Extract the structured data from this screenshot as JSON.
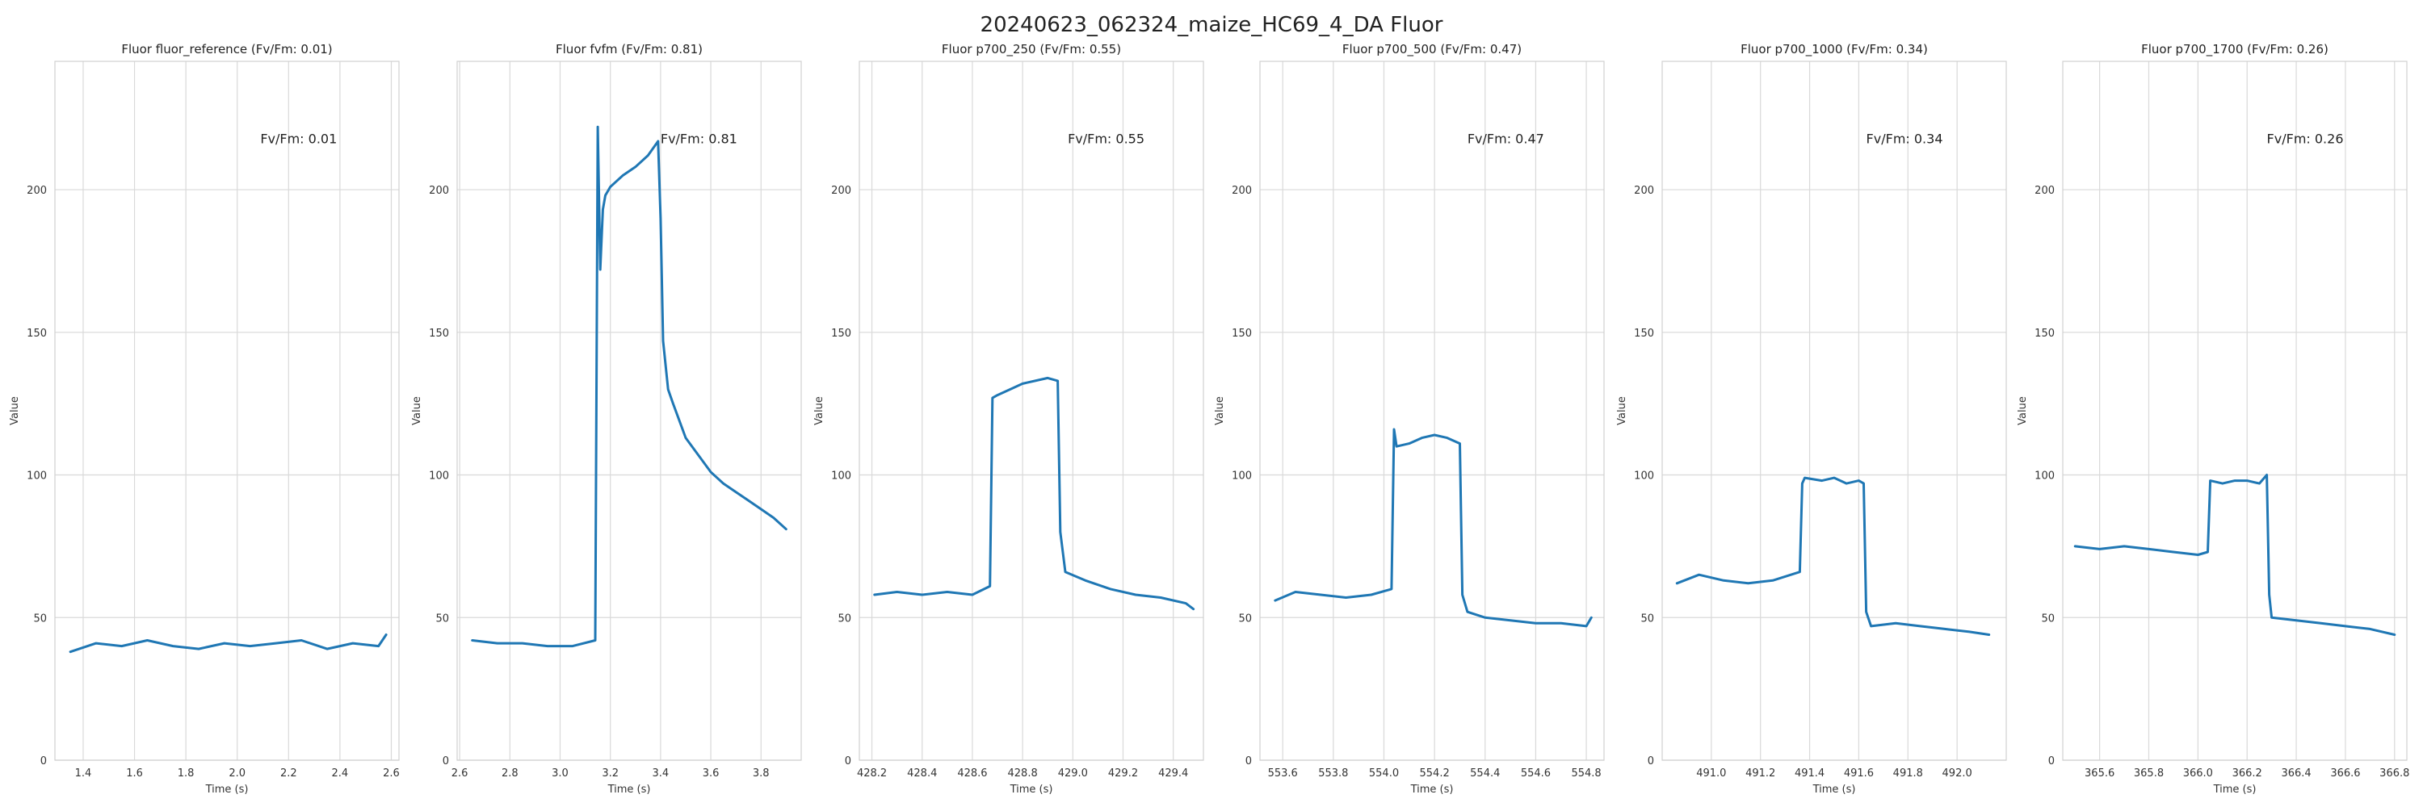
{
  "figure": {
    "title": "20240623_062324_maize_HC69_4_DA Fluor"
  },
  "style": {
    "line_color": "#1f77b4",
    "grid_color": "#d9d9d9",
    "frame_color": "#d0d0d0"
  },
  "chart_data": [
    {
      "type": "line",
      "title": "Fluor fluor_reference (Fv/Fm: 0.01)",
      "xlabel": "Time (s)",
      "ylabel": "Value",
      "xlim": [
        1.29,
        2.63
      ],
      "ylim": [
        0,
        245
      ],
      "xticks": [
        1.4,
        1.6,
        1.8,
        2.0,
        2.2,
        2.4,
        2.6
      ],
      "xtick_labels": [
        "1.4",
        "1.6",
        "1.8",
        "2.0",
        "2.2",
        "2.4",
        "2.6"
      ],
      "yticks": [
        0,
        50,
        100,
        150,
        200
      ],
      "ytick_labels": [
        "0",
        "50",
        "100",
        "150",
        "200"
      ],
      "annotation": {
        "text": "Fv/Fm: 0.01",
        "x": 2.09,
        "y": 218
      },
      "series": [
        {
          "x": [
            1.35,
            1.45,
            1.55,
            1.65,
            1.75,
            1.85,
            1.95,
            2.05,
            2.15,
            2.25,
            2.35,
            2.45,
            2.55,
            2.58
          ],
          "y": [
            38,
            41,
            40,
            42,
            40,
            39,
            41,
            40,
            41,
            42,
            39,
            41,
            40,
            44
          ]
        }
      ]
    },
    {
      "type": "line",
      "title": "Fluor fvfm (Fv/Fm: 0.81)",
      "xlabel": "Time (s)",
      "ylabel": "Value",
      "xlim": [
        2.59,
        3.96
      ],
      "ylim": [
        0,
        245
      ],
      "xticks": [
        2.6,
        2.8,
        3.0,
        3.2,
        3.4,
        3.6,
        3.8
      ],
      "xtick_labels": [
        "2.6",
        "2.8",
        "3.0",
        "3.2",
        "3.4",
        "3.6",
        "3.8"
      ],
      "yticks": [
        0,
        50,
        100,
        150,
        200
      ],
      "ytick_labels": [
        "0",
        "50",
        "100",
        "150",
        "200"
      ],
      "annotation": {
        "text": "Fv/Fm: 0.81",
        "x": 3.4,
        "y": 218
      },
      "series": [
        {
          "x": [
            2.65,
            2.75,
            2.85,
            2.95,
            3.05,
            3.14,
            3.15,
            3.16,
            3.17,
            3.18,
            3.2,
            3.25,
            3.3,
            3.35,
            3.39,
            3.4,
            3.41,
            3.43,
            3.45,
            3.5,
            3.55,
            3.6,
            3.65,
            3.7,
            3.75,
            3.8,
            3.85,
            3.9
          ],
          "y": [
            42,
            41,
            41,
            40,
            40,
            42,
            222,
            172,
            193,
            198,
            201,
            205,
            208,
            212,
            217,
            190,
            147,
            130,
            125,
            113,
            107,
            101,
            97,
            94,
            91,
            88,
            85,
            81
          ]
        }
      ]
    },
    {
      "type": "line",
      "title": "Fluor p700_250 (Fv/Fm: 0.55)",
      "xlabel": "Time (s)",
      "ylabel": "Value",
      "xlim": [
        428.15,
        429.52
      ],
      "ylim": [
        0,
        245
      ],
      "xticks": [
        428.2,
        428.4,
        428.6,
        428.8,
        429.0,
        429.2,
        429.4
      ],
      "xtick_labels": [
        "428.2",
        "428.4",
        "428.6",
        "428.8",
        "429.0",
        "429.2",
        "429.4"
      ],
      "yticks": [
        0,
        50,
        100,
        150,
        200
      ],
      "ytick_labels": [
        "0",
        "50",
        "100",
        "150",
        "200"
      ],
      "annotation": {
        "text": "Fv/Fm: 0.55",
        "x": 428.98,
        "y": 218
      },
      "series": [
        {
          "x": [
            428.21,
            428.3,
            428.4,
            428.5,
            428.6,
            428.67,
            428.68,
            428.7,
            428.75,
            428.8,
            428.85,
            428.9,
            428.94,
            428.95,
            428.97,
            429.05,
            429.15,
            429.25,
            429.35,
            429.45,
            429.48
          ],
          "y": [
            58,
            59,
            58,
            59,
            58,
            61,
            127,
            128,
            130,
            132,
            133,
            134,
            133,
            80,
            66,
            63,
            60,
            58,
            57,
            55,
            53
          ]
        }
      ]
    },
    {
      "type": "line",
      "title": "Fluor p700_500 (Fv/Fm: 0.47)",
      "xlabel": "Time (s)",
      "ylabel": "Value",
      "xlim": [
        553.51,
        554.87
      ],
      "ylim": [
        0,
        245
      ],
      "xticks": [
        553.6,
        553.8,
        554.0,
        554.2,
        554.4,
        554.6,
        554.8
      ],
      "xtick_labels": [
        "553.6",
        "553.8",
        "554.0",
        "554.2",
        "554.4",
        "554.6",
        "554.8"
      ],
      "yticks": [
        0,
        50,
        100,
        150,
        200
      ],
      "ytick_labels": [
        "0",
        "50",
        "100",
        "150",
        "200"
      ],
      "annotation": {
        "text": "Fv/Fm: 0.47",
        "x": 554.33,
        "y": 218
      },
      "series": [
        {
          "x": [
            553.57,
            553.65,
            553.75,
            553.85,
            553.95,
            554.03,
            554.04,
            554.05,
            554.1,
            554.15,
            554.2,
            554.25,
            554.3,
            554.31,
            554.33,
            554.4,
            554.5,
            554.6,
            554.7,
            554.8,
            554.82
          ],
          "y": [
            56,
            59,
            58,
            57,
            58,
            60,
            116,
            110,
            111,
            113,
            114,
            113,
            111,
            58,
            52,
            50,
            49,
            48,
            48,
            47,
            50
          ]
        }
      ]
    },
    {
      "type": "line",
      "title": "Fluor p700_1000 (Fv/Fm: 0.34)",
      "xlabel": "Time (s)",
      "ylabel": "Value",
      "xlim": [
        490.8,
        492.2
      ],
      "ylim": [
        0,
        245
      ],
      "xticks": [
        491.0,
        491.2,
        491.4,
        491.6,
        491.8,
        492.0
      ],
      "xtick_labels": [
        "491.0",
        "491.2",
        "491.4",
        "491.6",
        "491.8",
        "492.0"
      ],
      "yticks": [
        0,
        50,
        100,
        150,
        200
      ],
      "ytick_labels": [
        "0",
        "50",
        "100",
        "150",
        "200"
      ],
      "annotation": {
        "text": "Fv/Fm: 0.34",
        "x": 491.63,
        "y": 218
      },
      "series": [
        {
          "x": [
            490.86,
            490.95,
            491.05,
            491.15,
            491.25,
            491.36,
            491.37,
            491.38,
            491.45,
            491.5,
            491.55,
            491.6,
            491.62,
            491.63,
            491.65,
            491.75,
            491.85,
            491.95,
            492.05,
            492.13
          ],
          "y": [
            62,
            65,
            63,
            62,
            63,
            66,
            97,
            99,
            98,
            99,
            97,
            98,
            97,
            52,
            47,
            48,
            47,
            46,
            45,
            44
          ]
        }
      ]
    },
    {
      "type": "line",
      "title": "Fluor p700_1700 (Fv/Fm: 0.26)",
      "xlabel": "Time (s)",
      "ylabel": "Value",
      "xlim": [
        365.45,
        366.85
      ],
      "ylim": [
        0,
        245
      ],
      "xticks": [
        365.6,
        365.8,
        366.0,
        366.2,
        366.4,
        366.6,
        366.8
      ],
      "xtick_labels": [
        "365.6",
        "365.8",
        "366.0",
        "366.2",
        "366.4",
        "366.6",
        "366.8"
      ],
      "yticks": [
        0,
        50,
        100,
        150,
        200
      ],
      "ytick_labels": [
        "0",
        "50",
        "100",
        "150",
        "200"
      ],
      "annotation": {
        "text": "Fv/Fm: 0.26",
        "x": 366.28,
        "y": 218
      },
      "series": [
        {
          "x": [
            365.5,
            365.6,
            365.7,
            365.8,
            365.9,
            366.0,
            366.04,
            366.05,
            366.1,
            366.15,
            366.2,
            366.25,
            366.28,
            366.29,
            366.3,
            366.4,
            366.5,
            366.6,
            366.7,
            366.8
          ],
          "y": [
            75,
            74,
            75,
            74,
            73,
            72,
            73,
            98,
            97,
            98,
            98,
            97,
            100,
            58,
            50,
            49,
            48,
            47,
            46,
            44
          ]
        }
      ]
    }
  ]
}
